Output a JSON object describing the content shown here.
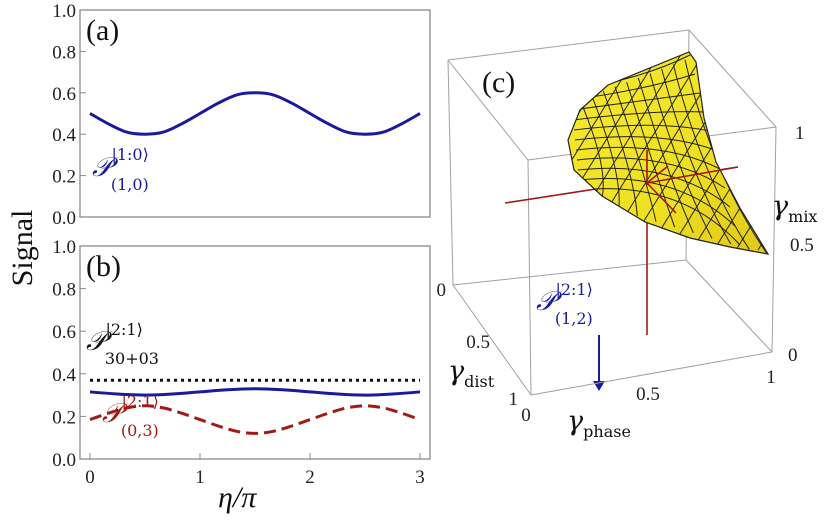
{
  "chart_data": [
    {
      "type": "line",
      "panel": "(a)",
      "ylabel": "Signal",
      "ylim": [
        0,
        1
      ],
      "yticks": [
        "0.0",
        "0.2",
        "0.4",
        "0.6",
        "0.8",
        "1.0"
      ],
      "series": [
        {
          "name": "P(1,0)^|1:0>",
          "style": "solid",
          "color": "#1a1a9c",
          "label_main": "𝒫",
          "label_sup": "|1:0⟩",
          "label_sub": "(1,0)",
          "x": [
            0,
            0.1667,
            0.3333,
            0.5,
            0.6667,
            0.8333,
            1.0,
            1.1667,
            1.3333,
            1.5,
            1.6667,
            1.8333,
            2.0,
            2.1667,
            2.3333,
            2.5,
            2.6667,
            2.8333,
            3.0
          ],
          "y": [
            0.5,
            0.45,
            0.41,
            0.4,
            0.41,
            0.45,
            0.5,
            0.55,
            0.59,
            0.6,
            0.59,
            0.55,
            0.5,
            0.45,
            0.41,
            0.4,
            0.41,
            0.45,
            0.5
          ]
        }
      ]
    },
    {
      "type": "line",
      "panel": "(b)",
      "xlabel": "η/π",
      "ylim": [
        0,
        1
      ],
      "xlim": [
        0,
        3
      ],
      "xticks": [
        "0",
        "1",
        "2",
        "3"
      ],
      "yticks": [
        "0.0",
        "0.2",
        "0.4",
        "0.6",
        "0.8",
        "1.0"
      ],
      "series": [
        {
          "name": "P30+03^|2:1>",
          "style": "dotted",
          "color": "#111111",
          "label_main": "𝒫",
          "label_sup": "|2:1⟩",
          "label_sub": "30+03",
          "x": [
            0,
            3
          ],
          "y": [
            0.37,
            0.37
          ]
        },
        {
          "name": "P(1,2)^|2:1>",
          "style": "solid",
          "color": "#1a1a9c",
          "label_main": "𝒫",
          "label_sup": "|2:1⟩",
          "label_sub": "(1,2)",
          "x": [
            0,
            0.25,
            0.5,
            0.75,
            1.0,
            1.25,
            1.5,
            1.75,
            2.0,
            2.25,
            2.5,
            2.75,
            3.0
          ],
          "y": [
            0.315,
            0.305,
            0.3,
            0.305,
            0.315,
            0.325,
            0.33,
            0.325,
            0.315,
            0.305,
            0.3,
            0.305,
            0.315
          ]
        },
        {
          "name": "P(0,3)^|2:1>",
          "style": "dashed",
          "color": "#a31a14",
          "label_main": "𝒫",
          "label_sup": "|2:1⟩",
          "label_sub": "(0,3)",
          "x": [
            0,
            0.1667,
            0.3333,
            0.5,
            0.6667,
            0.8333,
            1.0,
            1.1667,
            1.3333,
            1.5,
            1.6667,
            1.8333,
            2.0,
            2.1667,
            2.3333,
            2.5,
            2.6667,
            2.8333,
            3.0
          ],
          "y": [
            0.185,
            0.215,
            0.24,
            0.25,
            0.24,
            0.215,
            0.185,
            0.155,
            0.13,
            0.12,
            0.13,
            0.155,
            0.185,
            0.215,
            0.24,
            0.25,
            0.24,
            0.215,
            0.185
          ]
        }
      ]
    },
    {
      "type": "surface3d",
      "panel": "(c)",
      "xlabel": "γ",
      "xlabel_sub": "phase",
      "ylabel": "γ",
      "ylabel_sub": "dist",
      "zlabel": "γ",
      "zlabel_sub": "mix",
      "xticks": [
        "0",
        "0.5",
        "1"
      ],
      "yticks": [
        "0",
        "0.5",
        "1"
      ],
      "zticks": [
        "0",
        "0.5",
        "1"
      ],
      "surface_color": "#f2e21a"
    }
  ]
}
